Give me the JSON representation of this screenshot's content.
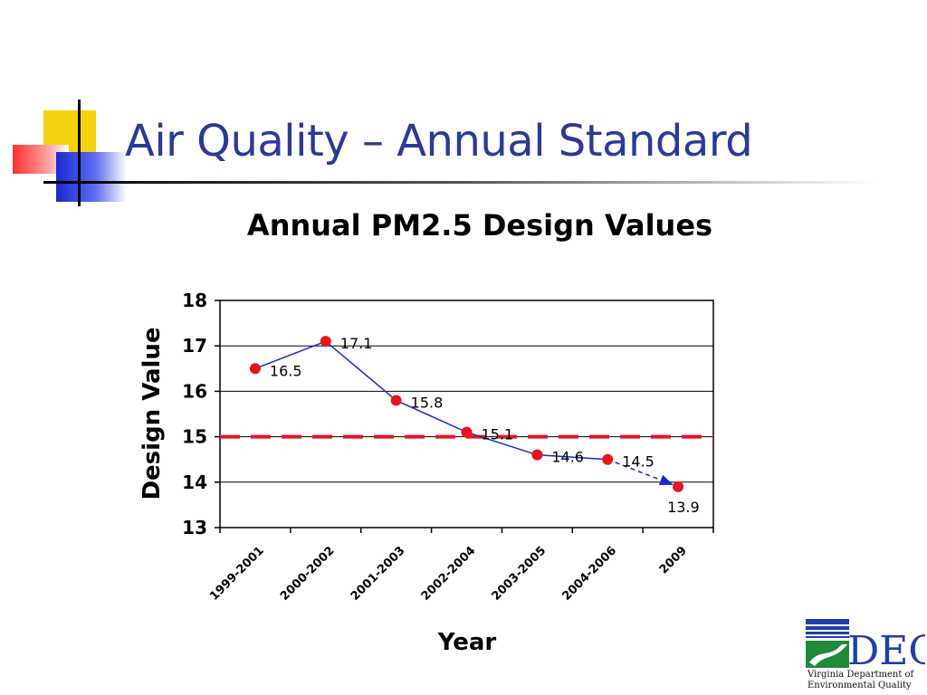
{
  "slide": {
    "title": "Air Quality – Annual Standard"
  },
  "chart_data": {
    "type": "line",
    "title": "Annual PM2.5 Design Values",
    "xlabel": "Year",
    "ylabel": "Design Value",
    "categories": [
      "1999-2001",
      "2000-2002",
      "2001-2003",
      "2002-2004",
      "2003-2005",
      "2004-2006",
      "2009"
    ],
    "series": [
      {
        "values": [
          16.5,
          17.1,
          15.8,
          15.1,
          14.6,
          14.5,
          13.9
        ],
        "color": "#e8141b",
        "line_color": "#1a2ad0",
        "last_segment_style": "dashed-arrow"
      }
    ],
    "data_labels": [
      "16.5",
      "17.1",
      "15.8",
      "15.1",
      "14.6",
      "14.5",
      "13.9"
    ],
    "reference_line": {
      "value": 15,
      "color": "#e8141b",
      "style": "dashed"
    },
    "ylim": [
      13,
      18
    ],
    "yticks": [
      13,
      14,
      15,
      16,
      17,
      18
    ],
    "grid": true,
    "legend": "none"
  },
  "logo": {
    "text": "DEQ",
    "caption_line1": "Virginia Department of",
    "caption_line2": "Environmental Quality",
    "colors": {
      "blue": "#1f3fa8",
      "green": "#1f8a3a"
    }
  }
}
